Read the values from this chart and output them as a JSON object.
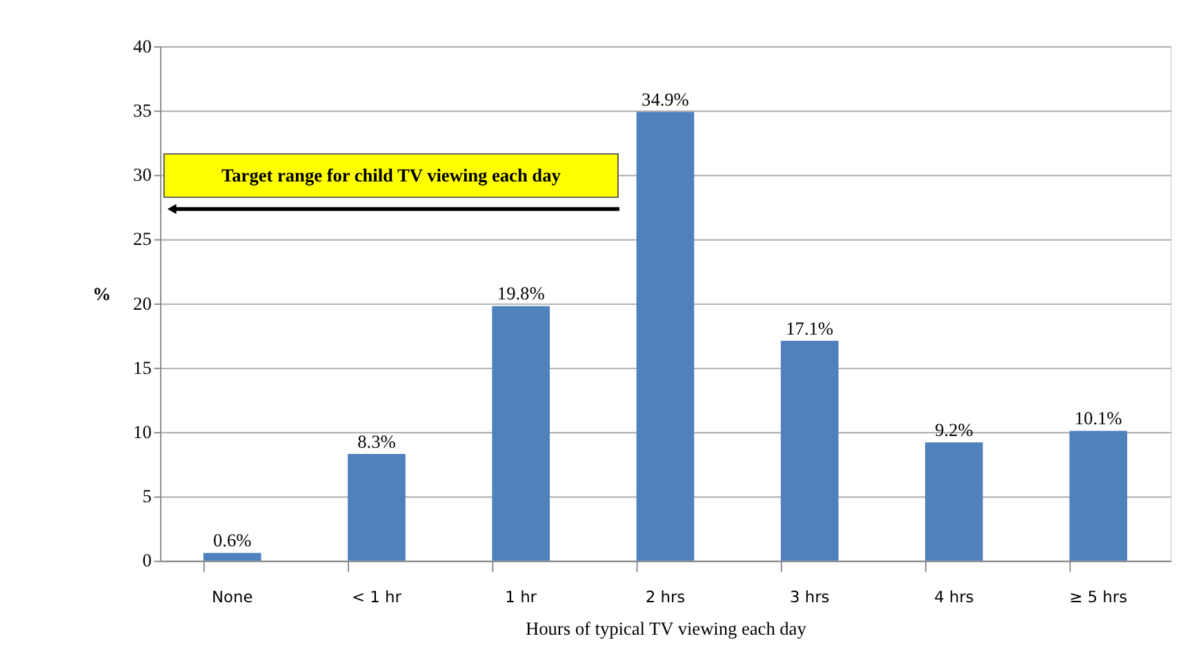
{
  "chart_data": {
    "type": "bar",
    "xlabel": "Hours of typical TV viewing each day",
    "ylabel": "%",
    "categories": [
      "None",
      "< 1 hr",
      "1 hr",
      "2 hrs",
      "3 hrs",
      "4 hrs",
      "≥ 5 hrs"
    ],
    "values": [
      0.6,
      8.3,
      19.8,
      34.9,
      17.1,
      9.2,
      10.1
    ],
    "value_labels": [
      "0.6%",
      "8.3%",
      "19.8%",
      "34.9%",
      "17.1%",
      "9.2%",
      "10.1%"
    ],
    "color": "#4f81bd",
    "ylim": [
      0,
      40
    ],
    "yticks": [
      0,
      5,
      10,
      15,
      20,
      25,
      30,
      35,
      40
    ],
    "grid": "y",
    "annotations": [
      "Target range for child TV viewing each day"
    ]
  }
}
